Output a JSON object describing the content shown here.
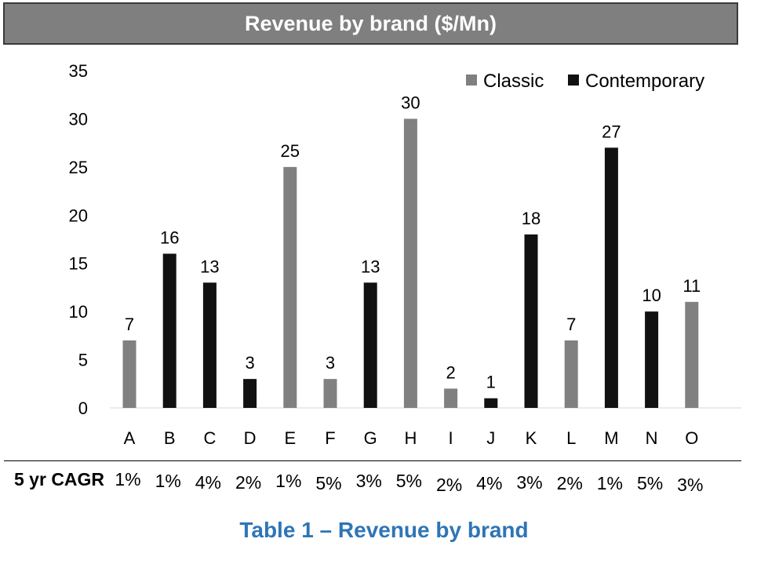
{
  "colors": {
    "classic": "#808080",
    "contemporary": "#111111",
    "caption": "#2e75b6",
    "title_bg": "#7f7f7f"
  },
  "chart_data": {
    "type": "bar",
    "title": "Revenue by brand ($/Mn)",
    "categories": [
      "A",
      "B",
      "C",
      "D",
      "E",
      "F",
      "G",
      "H",
      "I",
      "J",
      "K",
      "L",
      "M",
      "N",
      "O"
    ],
    "series": [
      {
        "name": "Classic",
        "values": [
          7,
          null,
          null,
          null,
          25,
          3,
          null,
          30,
          2,
          null,
          null,
          7,
          null,
          null,
          11
        ]
      },
      {
        "name": "Contemporary",
        "values": [
          null,
          16,
          13,
          3,
          null,
          null,
          13,
          null,
          null,
          1,
          18,
          null,
          27,
          10,
          null
        ]
      }
    ],
    "ylim": [
      0,
      35
    ],
    "yticks": [
      0,
      5,
      10,
      15,
      20,
      25,
      30,
      35
    ],
    "grid": false,
    "legend": "top-right"
  },
  "cagr": {
    "label": "5 yr CAGR",
    "values": [
      "1%",
      "1%",
      "4%",
      "2%",
      "1%",
      "5%",
      "3%",
      "5%",
      "2%",
      "4%",
      "3%",
      "2%",
      "1%",
      "5%",
      "3%"
    ]
  },
  "caption": "Table 1 – Revenue by brand"
}
